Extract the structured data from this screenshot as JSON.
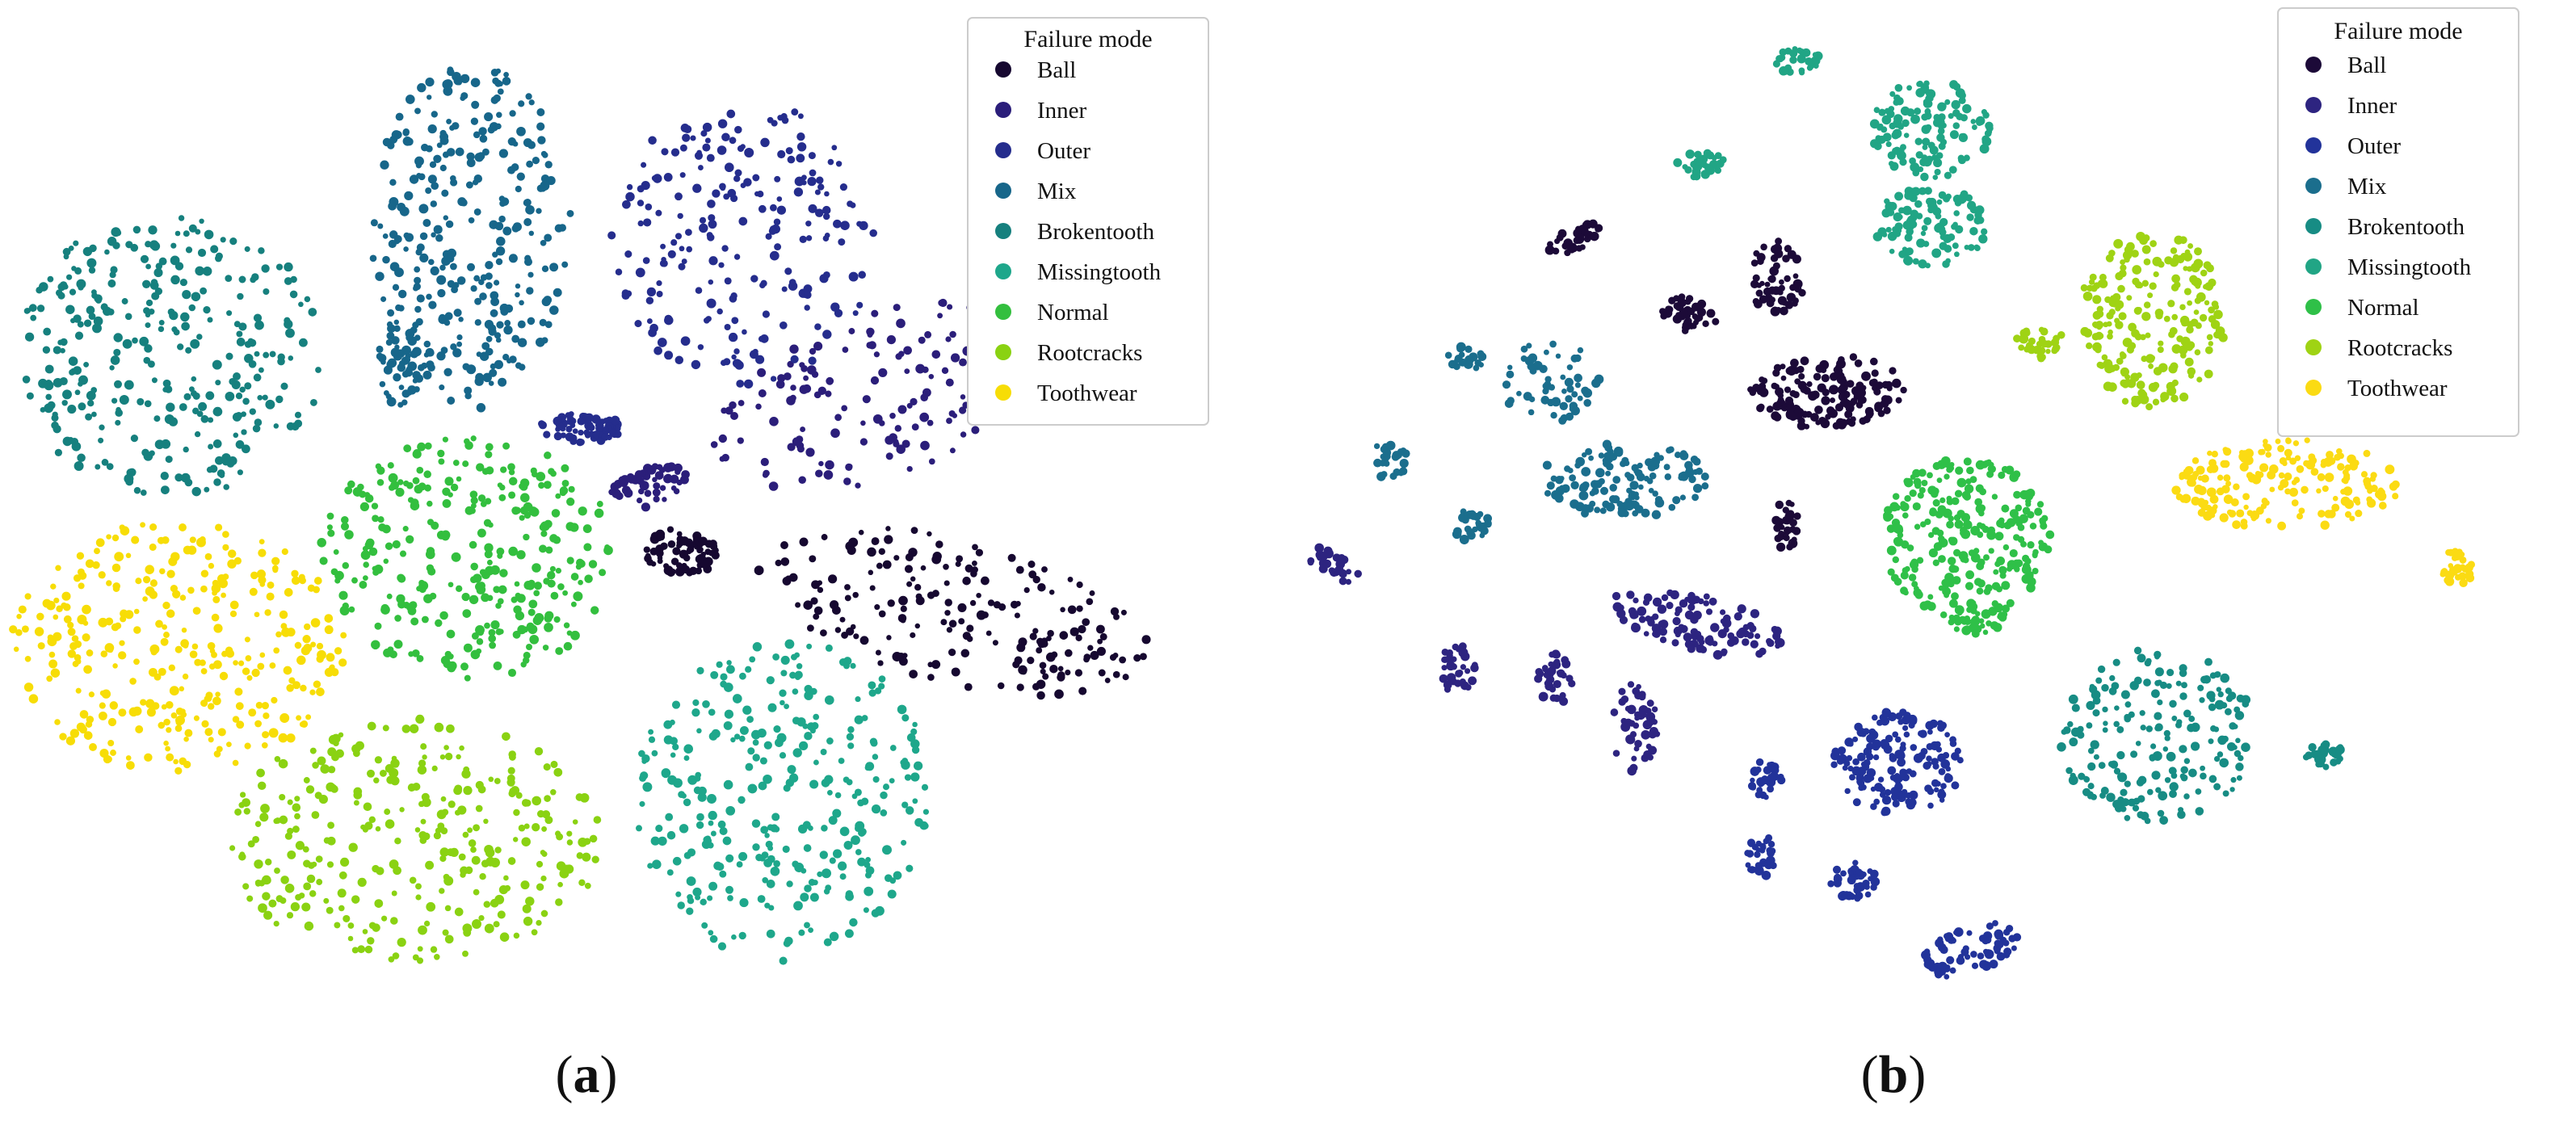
{
  "chart_data": [
    {
      "type": "scatter",
      "panel_label": "(a)",
      "panel_letter": "a",
      "legend": {
        "title": "Failure mode",
        "placement": "top-right"
      },
      "axes_visible": false,
      "grid": false,
      "series": [
        {
          "name": "Ball",
          "color": "#160830",
          "clusters": [
            {
              "cx": 422,
              "cy": 342,
              "rx": 22,
              "ry": 15,
              "n": 70,
              "tilt": 0.0
            },
            {
              "cx": 590,
              "cy": 378,
              "rx": 125,
              "ry": 45,
              "n": 200,
              "tilt": 0.25
            }
          ]
        },
        {
          "name": "Inner",
          "color": "#2b1e7a",
          "clusters": [
            {
              "cx": 400,
              "cy": 302,
              "rx": 26,
              "ry": 12,
              "n": 55,
              "tilt": -0.35
            },
            {
              "cx": 545,
              "cy": 245,
              "rx": 110,
              "ry": 50,
              "n": 160,
              "tilt": -0.35
            }
          ]
        },
        {
          "name": "Outer",
          "color": "#252d8d",
          "clusters": [
            {
              "cx": 460,
              "cy": 150,
              "rx": 82,
              "ry": 88,
              "n": 220,
              "tilt": 0.0
            },
            {
              "cx": 360,
              "cy": 265,
              "rx": 26,
              "ry": 9,
              "n": 70,
              "tilt": 0.0
            }
          ]
        },
        {
          "name": "Mix",
          "color": "#17668a",
          "clusters": [
            {
              "cx": 292,
              "cy": 145,
              "rx": 62,
              "ry": 108,
              "n": 300,
              "tilt": 0.0
            },
            {
              "cx": 248,
              "cy": 225,
              "rx": 14,
              "ry": 28,
              "n": 55,
              "tilt": 0.0
            }
          ]
        },
        {
          "name": "Brokentooth",
          "color": "#16807e",
          "clusters": [
            {
              "cx": 105,
              "cy": 220,
              "rx": 95,
              "ry": 88,
              "n": 320,
              "tilt": 0.0
            }
          ]
        },
        {
          "name": "Missingtooth",
          "color": "#1ea78b",
          "clusters": [
            {
              "cx": 485,
              "cy": 495,
              "rx": 92,
              "ry": 100,
              "n": 320,
              "tilt": 0.0
            }
          ]
        },
        {
          "name": "Normal",
          "color": "#33bf3e",
          "clusters": [
            {
              "cx": 290,
              "cy": 345,
              "rx": 92,
              "ry": 75,
              "n": 320,
              "tilt": 0.0
            }
          ]
        },
        {
          "name": "Rootcracks",
          "color": "#8ad212",
          "clusters": [
            {
              "cx": 255,
              "cy": 520,
              "rx": 118,
              "ry": 75,
              "n": 320,
              "tilt": 0.0
            }
          ]
        },
        {
          "name": "Toothwear",
          "color": "#f7dd06",
          "clusters": [
            {
              "cx": 110,
              "cy": 400,
              "rx": 103,
              "ry": 78,
              "n": 330,
              "tilt": 0.0
            }
          ]
        }
      ]
    },
    {
      "type": "scatter",
      "panel_label": "(b)",
      "panel_letter": "b",
      "legend": {
        "title": "Failure mode",
        "placement": "top-right"
      },
      "axes_visible": false,
      "grid": false,
      "series": [
        {
          "name": "Ball",
          "color": "#1c0a38",
          "clusters": [
            {
              "cx": 975,
              "cy": 148,
              "rx": 18,
              "ry": 7,
              "n": 35,
              "tilt": -0.4
            },
            {
              "cx": 1045,
              "cy": 195,
              "rx": 20,
              "ry": 10,
              "n": 40,
              "tilt": 0.4
            },
            {
              "cx": 1100,
              "cy": 172,
              "rx": 17,
              "ry": 23,
              "n": 55,
              "tilt": 0.0
            },
            {
              "cx": 1130,
              "cy": 243,
              "rx": 50,
              "ry": 22,
              "n": 150,
              "tilt": -0.1
            },
            {
              "cx": 1105,
              "cy": 325,
              "rx": 8,
              "ry": 16,
              "n": 30,
              "tilt": 0.0
            }
          ]
        },
        {
          "name": "Inner",
          "color": "#2d2480",
          "clusters": [
            {
              "cx": 825,
              "cy": 350,
              "rx": 20,
              "ry": 7,
              "n": 25,
              "tilt": 0.5
            },
            {
              "cx": 902,
              "cy": 413,
              "rx": 11,
              "ry": 17,
              "n": 35,
              "tilt": 0.0
            },
            {
              "cx": 963,
              "cy": 420,
              "rx": 11,
              "ry": 16,
              "n": 35,
              "tilt": 0.0
            },
            {
              "cx": 1010,
              "cy": 450,
              "rx": 16,
              "ry": 28,
              "n": 50,
              "tilt": 0.0
            },
            {
              "cx": 1050,
              "cy": 385,
              "rx": 55,
              "ry": 18,
              "n": 110,
              "tilt": 0.25
            }
          ]
        },
        {
          "name": "Outer",
          "color": "#22339a",
          "clusters": [
            {
              "cx": 1175,
              "cy": 472,
              "rx": 40,
              "ry": 32,
              "n": 160,
              "tilt": 0.0
            },
            {
              "cx": 1093,
              "cy": 482,
              "rx": 10,
              "ry": 12,
              "n": 30,
              "tilt": 0.0
            },
            {
              "cx": 1090,
              "cy": 530,
              "rx": 10,
              "ry": 13,
              "n": 30,
              "tilt": 0.0
            },
            {
              "cx": 1147,
              "cy": 545,
              "rx": 15,
              "ry": 12,
              "n": 40,
              "tilt": 0.0
            },
            {
              "cx": 1220,
              "cy": 588,
              "rx": 30,
              "ry": 15,
              "n": 70,
              "tilt": -0.3
            }
          ]
        },
        {
          "name": "Mix",
          "color": "#1b6e8d",
          "clusters": [
            {
              "cx": 1005,
              "cy": 297,
              "rx": 52,
              "ry": 24,
              "n": 130,
              "tilt": 0.0
            },
            {
              "cx": 960,
              "cy": 237,
              "rx": 30,
              "ry": 26,
              "n": 60,
              "tilt": 0.0
            },
            {
              "cx": 908,
              "cy": 222,
              "rx": 12,
              "ry": 8,
              "n": 22,
              "tilt": 0.0
            },
            {
              "cx": 859,
              "cy": 285,
              "rx": 12,
              "ry": 12,
              "n": 25,
              "tilt": 0.0
            },
            {
              "cx": 910,
              "cy": 325,
              "rx": 12,
              "ry": 10,
              "n": 25,
              "tilt": 0.0
            }
          ]
        },
        {
          "name": "Brokentooth",
          "color": "#178c84",
          "clusters": [
            {
              "cx": 1335,
              "cy": 455,
              "rx": 60,
              "ry": 55,
              "n": 200,
              "tilt": 0.0
            },
            {
              "cx": 1438,
              "cy": 467,
              "rx": 12,
              "ry": 10,
              "n": 30,
              "tilt": 0.0
            }
          ]
        },
        {
          "name": "Missingtooth",
          "color": "#21a585",
          "clusters": [
            {
              "cx": 1112,
              "cy": 37,
              "rx": 14,
              "ry": 9,
              "n": 28,
              "tilt": 0.0
            },
            {
              "cx": 1053,
              "cy": 102,
              "rx": 15,
              "ry": 9,
              "n": 28,
              "tilt": 0.0
            },
            {
              "cx": 1195,
              "cy": 80,
              "rx": 38,
              "ry": 30,
              "n": 130,
              "tilt": 0.0
            },
            {
              "cx": 1195,
              "cy": 140,
              "rx": 35,
              "ry": 25,
              "n": 110,
              "tilt": 0.0
            }
          ]
        },
        {
          "name": "Normal",
          "color": "#2fc048",
          "clusters": [
            {
              "cx": 1217,
              "cy": 333,
              "rx": 52,
              "ry": 50,
              "n": 260,
              "tilt": 0.0
            },
            {
              "cx": 1225,
              "cy": 385,
              "rx": 18,
              "ry": 10,
              "n": 30,
              "tilt": 0.0
            }
          ]
        },
        {
          "name": "Rootcracks",
          "color": "#9fd314",
          "clusters": [
            {
              "cx": 1332,
              "cy": 198,
              "rx": 45,
              "ry": 55,
              "n": 220,
              "tilt": 0.0
            },
            {
              "cx": 1263,
              "cy": 212,
              "rx": 15,
              "ry": 10,
              "n": 30,
              "tilt": 0.0
            }
          ]
        },
        {
          "name": "Toothwear",
          "color": "#fbdb13",
          "clusters": [
            {
              "cx": 1415,
              "cy": 300,
              "rx": 70,
              "ry": 28,
              "n": 180,
              "tilt": 0.0
            },
            {
              "cx": 1520,
              "cy": 352,
              "rx": 11,
              "ry": 11,
              "n": 30,
              "tilt": 0.0
            }
          ]
        }
      ]
    }
  ]
}
